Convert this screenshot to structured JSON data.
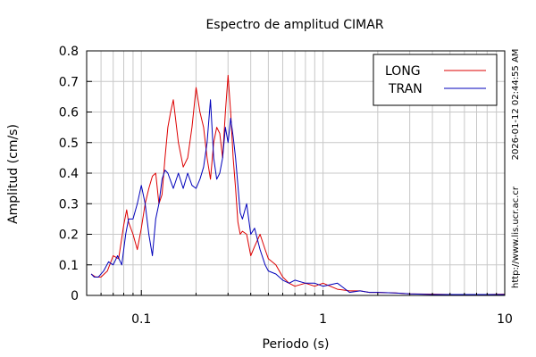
{
  "chart_data": {
    "type": "line",
    "title": "Espectro de amplitud CIMAR",
    "xlabel": "Periodo (s)",
    "ylabel": "Amplitud (cm/s)",
    "x_scale": "log",
    "xlim": [
      0.05,
      10
    ],
    "ylim": [
      0,
      0.8
    ],
    "x_ticks": [
      0.1,
      1,
      10
    ],
    "x_tick_labels": [
      "0.1",
      "1",
      "10"
    ],
    "y_ticks": [
      0,
      0.1,
      0.2,
      0.3,
      0.4,
      0.5,
      0.6,
      0.7,
      0.8
    ],
    "y_tick_labels": [
      "0",
      "0.1",
      "0.2",
      "0.3",
      "0.4",
      "0.5",
      "0.6",
      "0.7",
      "0.8"
    ],
    "grid": true,
    "legend_position": "top-right",
    "series": [
      {
        "name": "LONG",
        "color": "#dd0000",
        "x": [
          0.053,
          0.056,
          0.06,
          0.065,
          0.07,
          0.075,
          0.08,
          0.083,
          0.085,
          0.09,
          0.095,
          0.1,
          0.105,
          0.11,
          0.115,
          0.12,
          0.125,
          0.13,
          0.135,
          0.14,
          0.145,
          0.15,
          0.16,
          0.17,
          0.18,
          0.19,
          0.2,
          0.21,
          0.22,
          0.23,
          0.24,
          0.25,
          0.26,
          0.27,
          0.28,
          0.29,
          0.3,
          0.31,
          0.32,
          0.33,
          0.34,
          0.35,
          0.36,
          0.38,
          0.4,
          0.42,
          0.45,
          0.48,
          0.5,
          0.55,
          0.6,
          0.65,
          0.7,
          0.8,
          0.9,
          1.0,
          1.2,
          1.4,
          1.6,
          1.8,
          2.0,
          2.5,
          3.0,
          4.0,
          5.0,
          6.0,
          8.0,
          10.0
        ],
        "y": [
          0.07,
          0.06,
          0.06,
          0.08,
          0.13,
          0.12,
          0.23,
          0.28,
          0.24,
          0.2,
          0.15,
          0.22,
          0.3,
          0.35,
          0.39,
          0.4,
          0.3,
          0.33,
          0.45,
          0.55,
          0.6,
          0.64,
          0.5,
          0.42,
          0.45,
          0.55,
          0.68,
          0.6,
          0.55,
          0.45,
          0.38,
          0.5,
          0.55,
          0.53,
          0.45,
          0.6,
          0.72,
          0.6,
          0.45,
          0.35,
          0.24,
          0.2,
          0.21,
          0.2,
          0.13,
          0.16,
          0.2,
          0.15,
          0.12,
          0.1,
          0.06,
          0.04,
          0.03,
          0.04,
          0.03,
          0.04,
          0.02,
          0.015,
          0.015,
          0.01,
          0.01,
          0.008,
          0.005,
          0.004,
          0.003,
          0.003,
          0.003,
          0.004
        ]
      },
      {
        "name": "TRAN",
        "color": "#0000bb",
        "x": [
          0.053,
          0.055,
          0.058,
          0.062,
          0.066,
          0.07,
          0.074,
          0.078,
          0.082,
          0.085,
          0.09,
          0.095,
          0.1,
          0.105,
          0.11,
          0.115,
          0.12,
          0.125,
          0.13,
          0.135,
          0.14,
          0.15,
          0.16,
          0.17,
          0.18,
          0.19,
          0.2,
          0.21,
          0.22,
          0.23,
          0.24,
          0.25,
          0.26,
          0.27,
          0.28,
          0.29,
          0.3,
          0.31,
          0.32,
          0.33,
          0.34,
          0.35,
          0.36,
          0.38,
          0.4,
          0.42,
          0.45,
          0.48,
          0.5,
          0.55,
          0.6,
          0.65,
          0.7,
          0.8,
          0.9,
          1.0,
          1.2,
          1.4,
          1.6,
          1.8,
          2.0,
          2.5,
          3.0,
          4.0,
          5.0,
          6.0,
          8.0,
          10.0
        ],
        "y": [
          0.07,
          0.06,
          0.06,
          0.08,
          0.11,
          0.1,
          0.13,
          0.1,
          0.2,
          0.25,
          0.25,
          0.3,
          0.36,
          0.3,
          0.2,
          0.13,
          0.25,
          0.3,
          0.38,
          0.41,
          0.4,
          0.35,
          0.4,
          0.35,
          0.4,
          0.36,
          0.35,
          0.38,
          0.42,
          0.5,
          0.64,
          0.45,
          0.38,
          0.4,
          0.45,
          0.55,
          0.5,
          0.58,
          0.52,
          0.45,
          0.36,
          0.27,
          0.25,
          0.3,
          0.2,
          0.22,
          0.15,
          0.1,
          0.08,
          0.07,
          0.05,
          0.04,
          0.05,
          0.04,
          0.04,
          0.03,
          0.04,
          0.01,
          0.015,
          0.01,
          0.01,
          0.008,
          0.005,
          0.003,
          0.003,
          0.003,
          0.003,
          0.003
        ]
      }
    ]
  },
  "side_labels": {
    "timestamp": "2026-01-12 02:44:55 AM",
    "url": "http://www.lis.ucr.ac.cr"
  }
}
